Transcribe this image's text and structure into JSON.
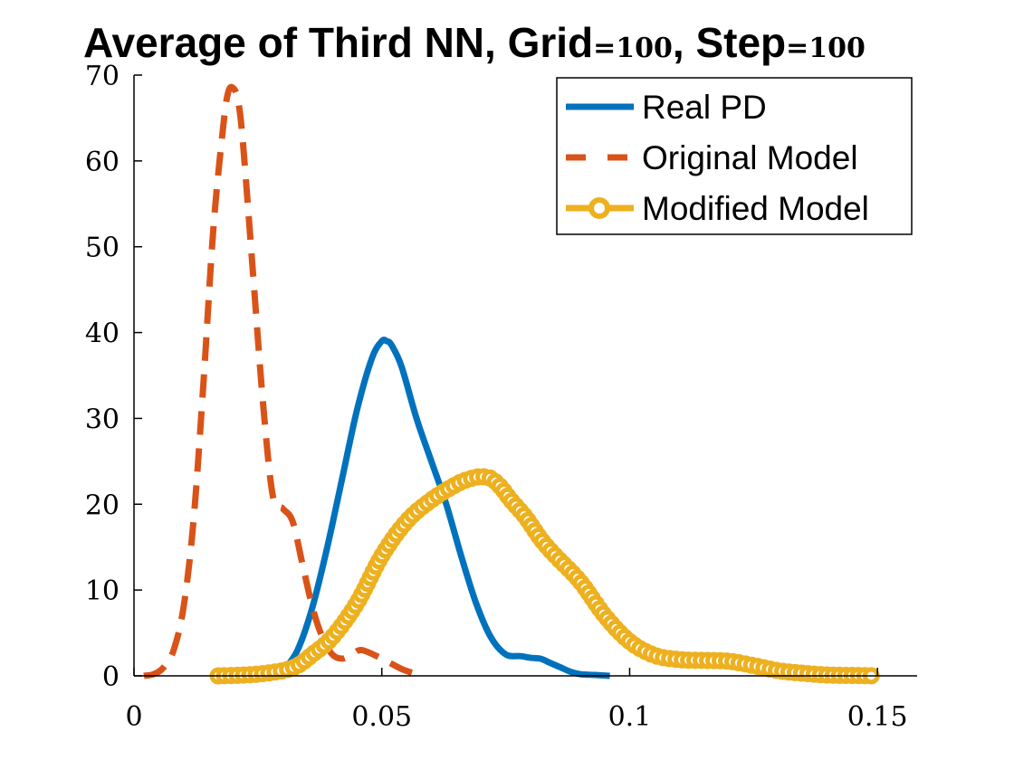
{
  "chart_data": {
    "type": "line",
    "title_parts": [
      {
        "text": "Average of Third NN, Grid",
        "small": false
      },
      {
        "text": "=100",
        "small": true
      },
      {
        "text": ", Step",
        "small": false
      },
      {
        "text": "=100",
        "small": true
      }
    ],
    "xlabel": "",
    "ylabel": "",
    "xlim": [
      0,
      0.158
    ],
    "ylim": [
      0,
      70
    ],
    "xticks": [
      0,
      0.05,
      0.1,
      0.15
    ],
    "xtick_labels": [
      "0",
      "0.05",
      "0.1",
      "0.15"
    ],
    "yticks": [
      0,
      10,
      20,
      30,
      40,
      50,
      60,
      70
    ],
    "ytick_labels": [
      "0",
      "10",
      "20",
      "30",
      "40",
      "50",
      "60",
      "70"
    ],
    "grid": false,
    "legend_position": "top-right",
    "series": [
      {
        "name": "Real PD",
        "color": "#0072BD",
        "style": "solid",
        "x": [
          0.03,
          0.033,
          0.036,
          0.039,
          0.042,
          0.045,
          0.048,
          0.05,
          0.051,
          0.052,
          0.054,
          0.057,
          0.06,
          0.063,
          0.066,
          0.069,
          0.072,
          0.075,
          0.078,
          0.08,
          0.082,
          0.084,
          0.086,
          0.088,
          0.09,
          0.093,
          0.096
        ],
        "y": [
          0.5,
          3,
          8,
          15,
          23,
          31,
          37,
          39,
          39,
          38.5,
          36,
          30,
          25,
          20,
          14,
          8.5,
          4.5,
          2.5,
          2.3,
          2.1,
          2,
          1.5,
          1,
          0.5,
          0.2,
          0.1,
          0
        ]
      },
      {
        "name": "Original Model",
        "color": "#D95319",
        "style": "dashed",
        "x": [
          0.002,
          0.004,
          0.006,
          0.008,
          0.01,
          0.012,
          0.014,
          0.016,
          0.018,
          0.019,
          0.02,
          0.021,
          0.022,
          0.024,
          0.026,
          0.028,
          0.03,
          0.032,
          0.034,
          0.036,
          0.038,
          0.04,
          0.042,
          0.044,
          0.046,
          0.05,
          0.054,
          0.057
        ],
        "y": [
          0,
          0.2,
          1,
          3,
          8,
          18,
          34,
          52,
          64,
          68,
          68.5,
          67,
          62,
          47,
          32,
          21,
          19.5,
          18,
          13,
          8,
          4.5,
          2.5,
          2,
          2.5,
          3,
          2,
          0.8,
          0.2
        ]
      },
      {
        "name": "Modified Model",
        "color": "#EDB120",
        "style": "dashed-circle",
        "x": [
          0.017,
          0.02,
          0.025,
          0.03,
          0.033,
          0.036,
          0.04,
          0.045,
          0.05,
          0.055,
          0.06,
          0.065,
          0.068,
          0.07,
          0.072,
          0.074,
          0.076,
          0.079,
          0.082,
          0.085,
          0.09,
          0.095,
          0.1,
          0.105,
          0.11,
          0.115,
          0.12,
          0.125,
          0.13,
          0.135,
          0.14,
          0.145,
          0.15
        ],
        "y": [
          0,
          0.05,
          0.2,
          0.6,
          1.2,
          2.5,
          4.5,
          8.5,
          14,
          18,
          20.5,
          22.3,
          23,
          23.2,
          23,
          22,
          20.5,
          18.5,
          16,
          14,
          11,
          7,
          4,
          2.4,
          1.9,
          1.8,
          1.7,
          1.2,
          0.6,
          0.3,
          0.1,
          0.05,
          0
        ]
      }
    ]
  }
}
